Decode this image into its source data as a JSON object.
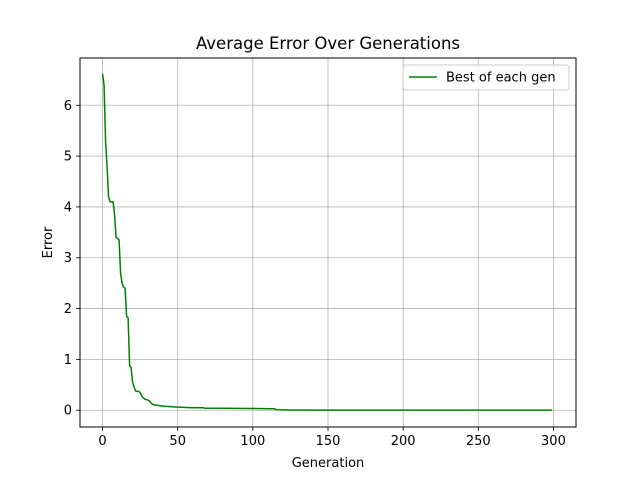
{
  "chart_data": {
    "type": "line",
    "title": "Average Error Over Generations",
    "xlabel": "Generation",
    "ylabel": "Error",
    "xlim": [
      -15,
      315
    ],
    "ylim": [
      -0.33,
      6.93
    ],
    "xticks": [
      0,
      50,
      100,
      150,
      200,
      250,
      300
    ],
    "yticks": [
      0,
      1,
      2,
      3,
      4,
      5,
      6
    ],
    "grid": true,
    "legend_position": "top-right",
    "series": [
      {
        "name": "Best of each gen",
        "color": "#008000",
        "x": [
          0,
          1,
          2,
          3,
          4,
          5,
          6,
          7,
          8,
          9,
          10,
          11,
          12,
          13,
          14,
          15,
          16,
          17,
          18,
          19,
          20,
          21,
          22,
          23,
          24,
          25,
          26,
          28,
          30,
          31,
          32,
          33,
          35,
          38,
          40,
          45,
          50,
          60,
          67,
          68,
          80,
          100,
          114,
          115,
          116,
          125,
          150,
          200,
          250,
          299
        ],
        "y": [
          6.62,
          6.4,
          5.3,
          4.8,
          4.2,
          4.1,
          4.1,
          4.1,
          3.85,
          3.4,
          3.38,
          3.35,
          2.7,
          2.5,
          2.42,
          2.4,
          1.85,
          1.82,
          0.88,
          0.84,
          0.55,
          0.45,
          0.38,
          0.37,
          0.37,
          0.35,
          0.28,
          0.22,
          0.2,
          0.19,
          0.15,
          0.12,
          0.1,
          0.09,
          0.08,
          0.07,
          0.06,
          0.05,
          0.05,
          0.04,
          0.04,
          0.035,
          0.03,
          0.02,
          0.01,
          0.005,
          0.003,
          0.002,
          0.001,
          0.001
        ]
      }
    ]
  }
}
